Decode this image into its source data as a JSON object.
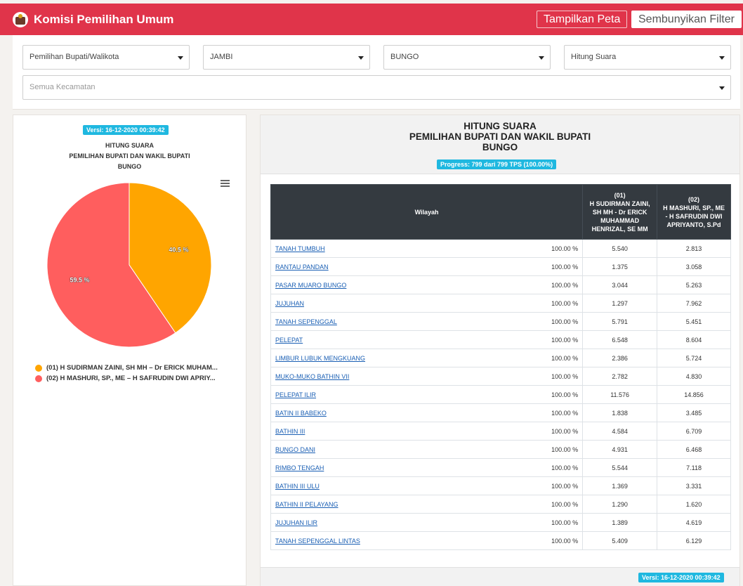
{
  "navbar": {
    "title": "Komisi Pemilihan Umum",
    "btn_map": "Tampilkan Peta",
    "btn_filter": "Sembunyikan Filter"
  },
  "filters": {
    "election": "Pemilihan Bupati/Walikota",
    "province": "JAMBI",
    "regency": "BUNGO",
    "mode": "Hitung Suara",
    "district": "Semua Kecamatan"
  },
  "left_chart": {
    "version": "Versi: 16-12-2020 00:39:42",
    "title_line1": "HITUNG SUARA",
    "title_line2": "PEMILIHAN BUPATI DAN WAKIL BUPATI",
    "title_line3": "BUNGO"
  },
  "chart_data": {
    "type": "pie",
    "slices": [
      {
        "name": "(01) H SUDIRMAN ZAINI, SH MH – Dr ERICK MUHAM...",
        "value": 40.5,
        "label": "40.5 %",
        "color": "#ffa500"
      },
      {
        "name": "(02) H MASHURI, SP., ME – H SAFRUDIN DWI APRIY...",
        "value": 59.5,
        "label": "59.5 %",
        "color": "#ff5e5e"
      }
    ]
  },
  "right_panel": {
    "title_line1": "HITUNG SUARA",
    "title_line2": "PEMILIHAN BUPATI DAN WAKIL BUPATI",
    "title_line3": "BUNGO",
    "progress": "Progress: 799 dari 799 TPS (100.00%)",
    "footer_version": "Versi: 16-12-2020 00:39:42"
  },
  "table": {
    "col_region": "Wilayah",
    "col_c1_num": "(01)",
    "col_c1_name": "H SUDIRMAN ZAINI, SH MH - Dr ERICK MUHAMMAD HENRIZAL, SE MM",
    "col_c2_num": "(02)",
    "col_c2_name": "H MASHURI, SP., ME - H SAFRUDIN DWI APRIYANTO, S.Pd",
    "rows": [
      {
        "region": "TANAH TUMBUH",
        "pct": "100.00 %",
        "c1": "5.540",
        "c2": "2.813"
      },
      {
        "region": "RANTAU PANDAN",
        "pct": "100.00 %",
        "c1": "1.375",
        "c2": "3.058"
      },
      {
        "region": "PASAR MUARO BUNGO",
        "pct": "100.00 %",
        "c1": "3.044",
        "c2": "5.263"
      },
      {
        "region": "JUJUHAN",
        "pct": "100.00 %",
        "c1": "1.297",
        "c2": "7.962"
      },
      {
        "region": "TANAH SEPENGGAL",
        "pct": "100.00 %",
        "c1": "5.791",
        "c2": "5.451"
      },
      {
        "region": "PELEPAT",
        "pct": "100.00 %",
        "c1": "6.548",
        "c2": "8.604"
      },
      {
        "region": "LIMBUR LUBUK MENGKUANG",
        "pct": "100.00 %",
        "c1": "2.386",
        "c2": "5.724"
      },
      {
        "region": "MUKO-MUKO BATHIN VII",
        "pct": "100.00 %",
        "c1": "2.782",
        "c2": "4.830"
      },
      {
        "region": "PELEPAT ILIR",
        "pct": "100.00 %",
        "c1": "11.576",
        "c2": "14.856"
      },
      {
        "region": "BATIN II BABEKO",
        "pct": "100.00 %",
        "c1": "1.838",
        "c2": "3.485"
      },
      {
        "region": "BATHIN III",
        "pct": "100.00 %",
        "c1": "4.584",
        "c2": "6.709"
      },
      {
        "region": "BUNGO DANI",
        "pct": "100.00 %",
        "c1": "4.931",
        "c2": "6.468"
      },
      {
        "region": "RIMBO TENGAH",
        "pct": "100.00 %",
        "c1": "5.544",
        "c2": "7.118"
      },
      {
        "region": "BATHIN III ULU",
        "pct": "100.00 %",
        "c1": "1.369",
        "c2": "3.331"
      },
      {
        "region": "BATHIN II PELAYANG",
        "pct": "100.00 %",
        "c1": "1.290",
        "c2": "1.620"
      },
      {
        "region": "JUJUHAN ILIR",
        "pct": "100.00 %",
        "c1": "1.389",
        "c2": "4.619"
      },
      {
        "region": "TANAH SEPENGGAL LINTAS",
        "pct": "100.00 %",
        "c1": "5.409",
        "c2": "6.129"
      }
    ]
  }
}
